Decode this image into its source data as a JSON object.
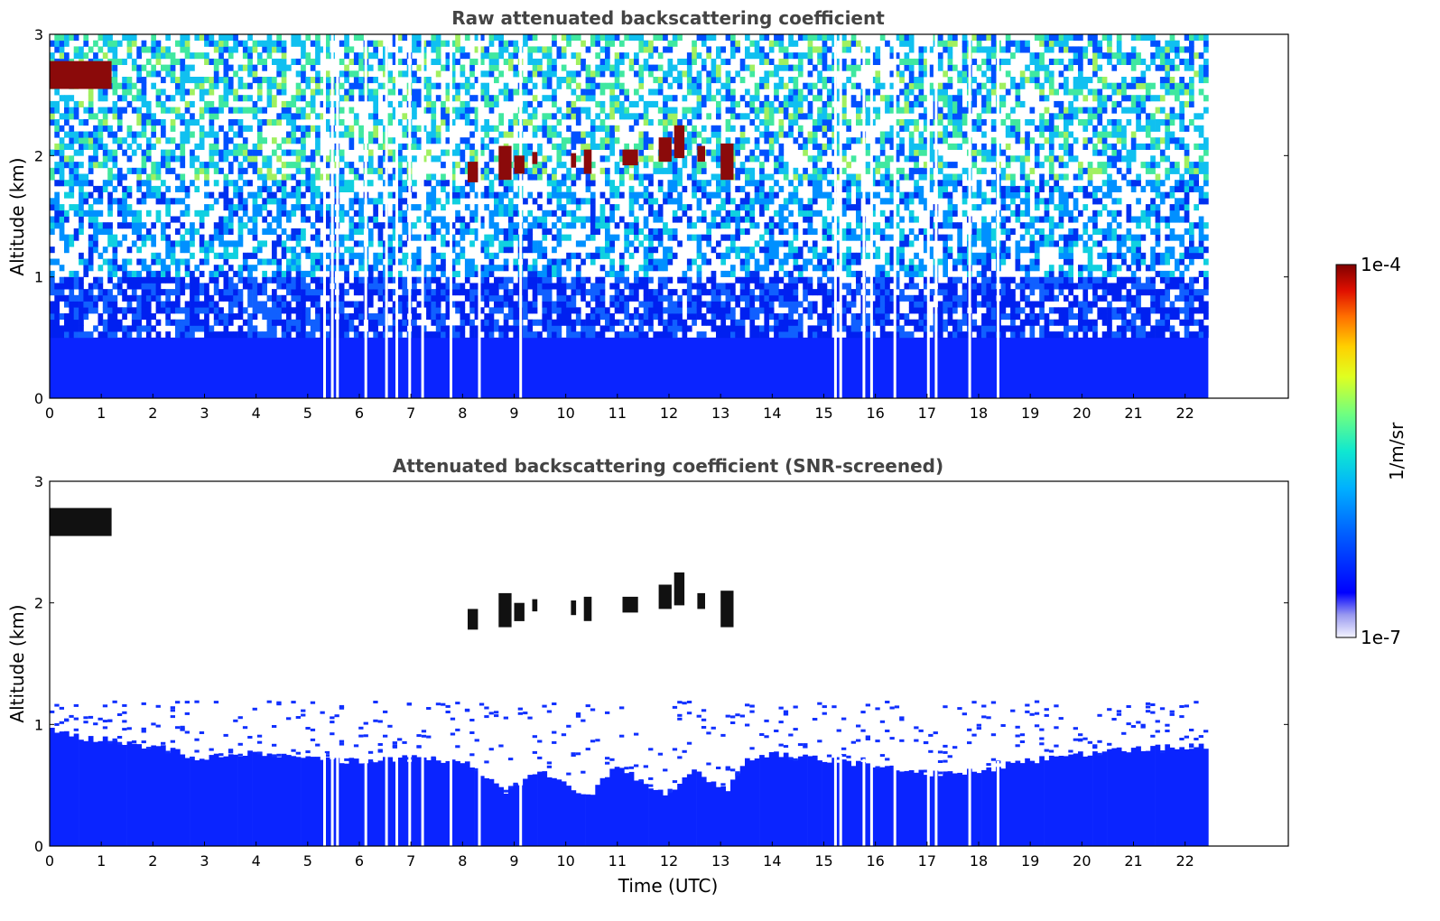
{
  "chart_data": [
    {
      "type": "heatmap",
      "title": "Raw attenuated backscattering coefficient",
      "ylabel": "Altitude (km)",
      "xlabel": "",
      "xlim": [
        0,
        24
      ],
      "ylim": [
        0,
        3
      ],
      "x_ticks": [
        "0",
        "1",
        "2",
        "3",
        "4",
        "5",
        "6",
        "7",
        "8",
        "9",
        "10",
        "11",
        "12",
        "13",
        "14",
        "15",
        "16",
        "17",
        "18",
        "19",
        "20",
        "21",
        "22"
      ],
      "y_ticks": [
        "0",
        "1",
        "2",
        "3"
      ],
      "data_time_range": [
        0,
        22.45
      ],
      "grid": false,
      "features": {
        "boundary_layer_top_km": 0.5,
        "noise_level": "high",
        "cloud_segments": [
          {
            "t0": 0.0,
            "t1": 1.2,
            "alt_low": 2.55,
            "alt_high": 2.78,
            "intensity": "1e-4"
          },
          {
            "t0": 8.1,
            "t1": 8.3,
            "alt_low": 1.78,
            "alt_high": 1.95,
            "intensity": "1e-4"
          },
          {
            "t0": 8.7,
            "t1": 8.95,
            "alt_low": 1.8,
            "alt_high": 2.08,
            "intensity": "1e-4"
          },
          {
            "t0": 9.0,
            "t1": 9.2,
            "alt_low": 1.85,
            "alt_high": 2.0,
            "intensity": "1e-4"
          },
          {
            "t0": 9.35,
            "t1": 9.45,
            "alt_low": 1.93,
            "alt_high": 2.03,
            "intensity": "1e-4"
          },
          {
            "t0": 10.1,
            "t1": 10.2,
            "alt_low": 1.9,
            "alt_high": 2.02,
            "intensity": "1e-4"
          },
          {
            "t0": 10.35,
            "t1": 10.5,
            "alt_low": 1.85,
            "alt_high": 2.05,
            "intensity": "1e-4"
          },
          {
            "t0": 11.1,
            "t1": 11.4,
            "alt_low": 1.92,
            "alt_high": 2.05,
            "intensity": "1e-4"
          },
          {
            "t0": 11.8,
            "t1": 12.05,
            "alt_low": 1.95,
            "alt_high": 2.15,
            "intensity": "1e-4"
          },
          {
            "t0": 12.1,
            "t1": 12.3,
            "alt_low": 1.98,
            "alt_high": 2.25,
            "intensity": "1e-4"
          },
          {
            "t0": 12.55,
            "t1": 12.7,
            "alt_low": 1.95,
            "alt_high": 2.08,
            "intensity": "1e-4"
          },
          {
            "t0": 13.0,
            "t1": 13.25,
            "alt_low": 1.8,
            "alt_high": 2.1,
            "intensity": "1e-4"
          }
        ],
        "gap_lines_utc": [
          5.3,
          5.45,
          5.55,
          6.1,
          6.5,
          6.7,
          6.95,
          7.2,
          7.75,
          8.3,
          9.1,
          15.2,
          15.3,
          15.75,
          15.9,
          16.35,
          17.0,
          17.15,
          17.8,
          18.35
        ]
      }
    },
    {
      "type": "heatmap",
      "title": "Attenuated backscattering coefficient (SNR-screened)",
      "ylabel": "Altitude (km)",
      "xlabel": "Time (UTC)",
      "xlim": [
        0,
        24
      ],
      "ylim": [
        0,
        3
      ],
      "x_ticks": [
        "0",
        "1",
        "2",
        "3",
        "4",
        "5",
        "6",
        "7",
        "8",
        "9",
        "10",
        "11",
        "12",
        "13",
        "14",
        "15",
        "16",
        "17",
        "18",
        "19",
        "20",
        "21",
        "22"
      ],
      "y_ticks": [
        "0",
        "1",
        "2",
        "3"
      ],
      "data_time_range": [
        0,
        22.45
      ],
      "grid": false,
      "features": {
        "screened_top_km": [
          [
            0,
            0.95
          ],
          [
            0.5,
            0.9
          ],
          [
            1,
            0.88
          ],
          [
            2,
            0.82
          ],
          [
            3,
            0.72
          ],
          [
            4,
            0.78
          ],
          [
            5,
            0.72
          ],
          [
            6,
            0.7
          ],
          [
            7,
            0.72
          ],
          [
            8,
            0.7
          ],
          [
            8.8,
            0.45
          ],
          [
            9.5,
            0.62
          ],
          [
            10.4,
            0.4
          ],
          [
            11,
            0.65
          ],
          [
            12,
            0.42
          ],
          [
            12.5,
            0.62
          ],
          [
            13.1,
            0.45
          ],
          [
            13.5,
            0.7
          ],
          [
            14,
            0.75
          ],
          [
            15,
            0.72
          ],
          [
            16,
            0.65
          ],
          [
            17,
            0.6
          ],
          [
            18,
            0.62
          ],
          [
            19,
            0.7
          ],
          [
            20,
            0.75
          ],
          [
            21,
            0.8
          ],
          [
            22.45,
            0.82
          ]
        ],
        "scatter_top_km": 1.2,
        "cloud_segments_screened": "same as raw",
        "gap_lines_utc": [
          5.3,
          5.45,
          5.55,
          6.1,
          6.5,
          6.7,
          6.95,
          7.2,
          7.75,
          8.3,
          9.1,
          15.2,
          15.3,
          15.75,
          15.9,
          16.35,
          17.0,
          17.15,
          17.8,
          18.35
        ]
      }
    }
  ],
  "colorbar": {
    "label": "1/m/sr",
    "top_label": "1e-4",
    "bottom_label": "1e-7",
    "scale": "log",
    "colormap": "jet",
    "colors": [
      "#e8e8f8",
      "#c0c0f0",
      "#9090f0",
      "#0000ff",
      "#0040ff",
      "#0080ff",
      "#00c0ff",
      "#00e0e0",
      "#40ff80",
      "#a0ff40",
      "#ffff00",
      "#ffc000",
      "#ff8000",
      "#ff4000",
      "#e00000",
      "#800000"
    ]
  }
}
